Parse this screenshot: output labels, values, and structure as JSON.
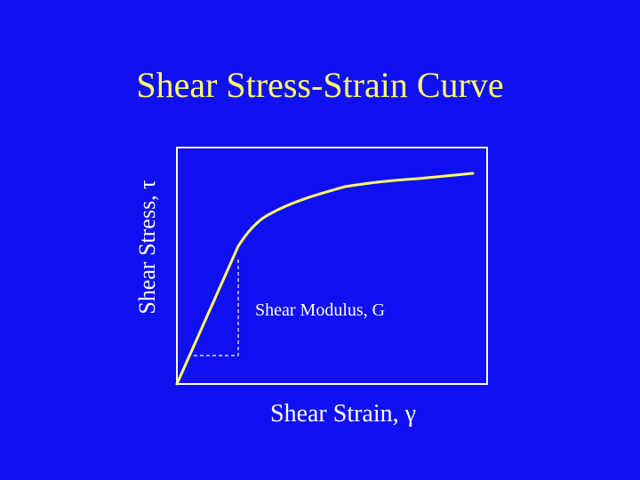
{
  "slide": {
    "title": "Shear Stress-Strain Curve",
    "y_axis_label": "Shear Stress, τ",
    "x_axis_label": "Shear Strain, γ",
    "annotation": "Shear Modulus, G"
  },
  "colors": {
    "background": "#1010f0",
    "title": "#ffff66",
    "curve": "#ffff66",
    "text": "#ffffff",
    "frame": "#ffffff"
  }
}
